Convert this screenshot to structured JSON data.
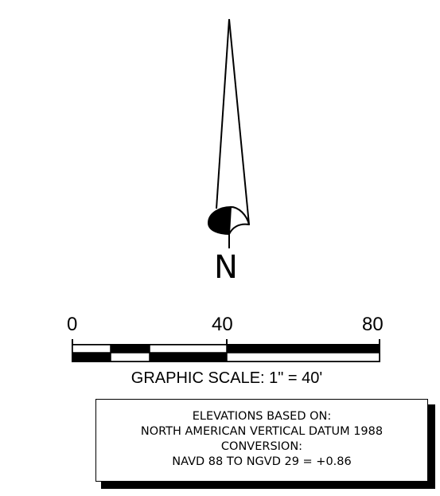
{
  "north_arrow": {
    "letter": "N"
  },
  "graphic_scale": {
    "tick_labels": [
      "0",
      "40",
      "80"
    ],
    "caption": "GRAPHIC SCALE: 1\" = 40'"
  },
  "datum_note": {
    "lines": [
      "ELEVATIONS BASED ON:",
      "NORTH AMERICAN VERTICAL DATUM 1988",
      "CONVERSION:",
      "NAVD 88 TO NGVD 29 = +0.86"
    ]
  }
}
